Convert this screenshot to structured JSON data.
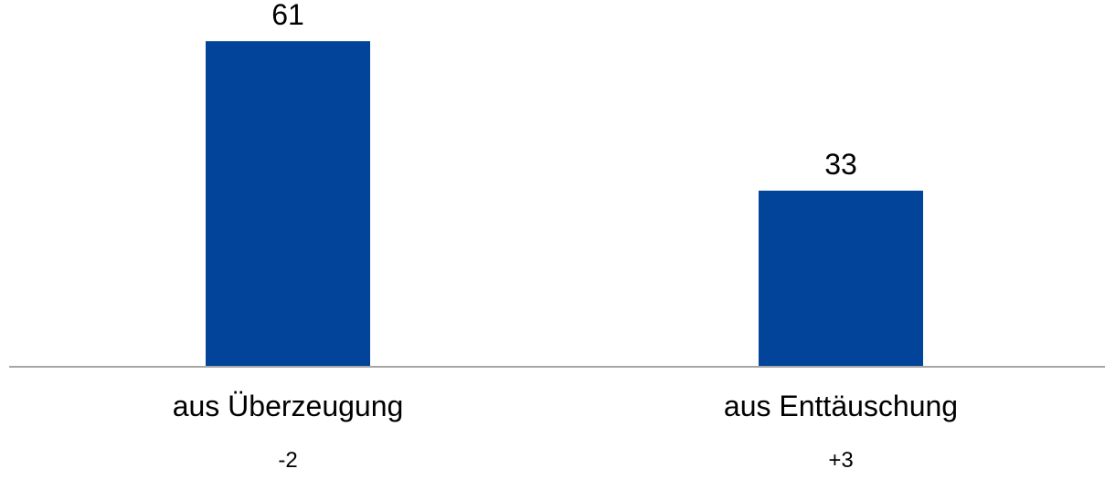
{
  "chart_data": {
    "type": "bar",
    "categories": [
      "aus Überzeugung",
      "aus Enttäuschung"
    ],
    "values": [
      61,
      33
    ],
    "value_labels": [
      "61",
      "33"
    ],
    "changes": [
      "-2",
      "+3"
    ],
    "title": "",
    "xlabel": "",
    "ylabel": "",
    "ylim": [
      0,
      66.5
    ],
    "grid": false,
    "bar_color": "#024499",
    "axis_color": "#a6a6a6"
  }
}
